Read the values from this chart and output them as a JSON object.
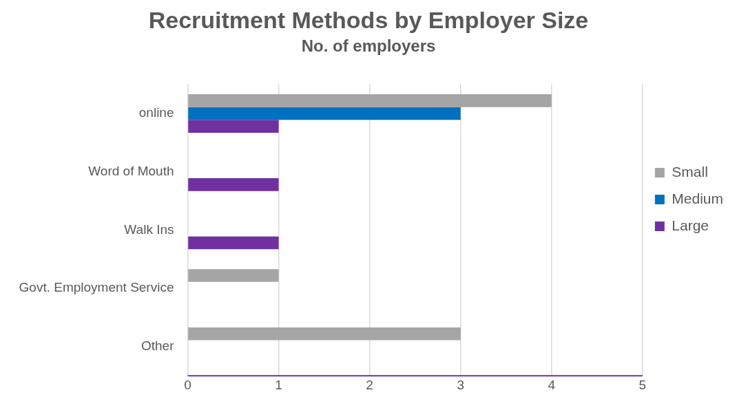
{
  "chart_data": {
    "type": "bar",
    "orientation": "horizontal",
    "title": "Recruitment Methods by Employer Size",
    "subtitle": "No. of employers",
    "categories": [
      "online",
      "Word of Mouth",
      "Walk Ins",
      "Govt. Employment Service",
      "Other"
    ],
    "series": [
      {
        "name": "Small",
        "color": "#a5a5a5",
        "values": [
          4,
          null,
          null,
          1,
          3
        ]
      },
      {
        "name": "Medium",
        "color": "#0070c0",
        "values": [
          3,
          null,
          null,
          null,
          null
        ]
      },
      {
        "name": "Large",
        "color": "#7030a0",
        "values": [
          1,
          1,
          1,
          null,
          null
        ]
      }
    ],
    "xlim": [
      0,
      5
    ],
    "xticks": [
      0,
      1,
      2,
      3,
      4,
      5
    ],
    "grid": "x",
    "legend": "right"
  }
}
